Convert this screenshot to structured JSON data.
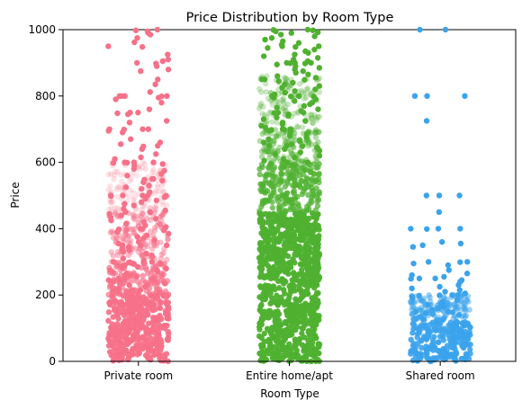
{
  "chart_data": {
    "type": "scatter",
    "subtype": "strip",
    "title": "Price Distribution by Room Type",
    "xlabel": "Room Type",
    "ylabel": "Price",
    "ylim": [
      0,
      1000
    ],
    "yticks": [
      0,
      200,
      400,
      600,
      800,
      1000
    ],
    "grid": false,
    "legend": "none",
    "categories": [
      "Private room",
      "Entire home/apt",
      "Shared room"
    ],
    "series": [
      {
        "category": "Private room",
        "color": "#f77189",
        "jitter_width": 0.4,
        "dense_bands": [
          {
            "from": 0,
            "to": 200,
            "opacity": 0.95
          },
          {
            "from": 200,
            "to": 300,
            "opacity": 0.7
          },
          {
            "from": 300,
            "to": 450,
            "opacity": 0.45
          },
          {
            "from": 450,
            "to": 600,
            "opacity": 0.2
          }
        ],
        "values": [
          1000,
          998,
          995,
          990,
          985,
          975,
          962,
          950,
          948,
          925,
          910,
          905,
          900,
          898,
          890,
          880,
          875,
          850,
          835,
          812,
          800,
          800,
          800,
          800,
          799,
          795,
          790,
          780,
          760,
          750,
          750,
          748,
          745,
          725,
          720,
          700,
          700,
          700,
          699,
          695,
          690,
          670,
          660,
          655,
          650,
          648,
          640,
          625,
          615,
          610,
          600,
          600,
          600,
          599,
          598,
          595,
          590,
          580,
          575,
          565,
          560,
          550,
          550,
          548,
          545,
          540,
          530,
          525,
          520,
          510,
          500,
          500,
          500,
          500,
          499,
          498,
          495,
          490,
          485,
          480,
          475,
          470,
          460,
          455,
          450,
          450,
          449,
          445,
          440,
          435,
          430,
          425,
          420,
          415,
          410,
          405,
          400,
          400,
          399,
          398,
          395,
          390,
          385,
          380,
          375,
          370,
          365,
          360,
          355,
          350,
          350,
          349,
          345,
          340,
          335,
          330,
          325,
          320,
          315,
          310,
          305,
          300,
          300,
          299,
          298,
          295,
          290,
          285,
          280,
          275,
          270,
          265,
          260,
          255,
          250,
          250,
          248,
          245,
          240,
          235,
          230,
          225,
          220,
          215,
          210
        ]
      },
      {
        "category": "Entire home/apt",
        "color": "#50b131",
        "jitter_width": 0.4,
        "dense_bands": [
          {
            "from": 0,
            "to": 450,
            "opacity": 0.97
          },
          {
            "from": 450,
            "to": 600,
            "opacity": 0.75
          },
          {
            "from": 600,
            "to": 700,
            "opacity": 0.45
          },
          {
            "from": 700,
            "to": 860,
            "opacity": 0.3
          }
        ],
        "values": [
          1000,
          999,
          998,
          995,
          992,
          990,
          985,
          980,
          975,
          970,
          965,
          960,
          955,
          950,
          950,
          948,
          945,
          940,
          935,
          930,
          925,
          920,
          915,
          910,
          905,
          900,
          900,
          900,
          899,
          898,
          895,
          890,
          885,
          880,
          875,
          870,
          865,
          860,
          855,
          850,
          850,
          849,
          845,
          840,
          835,
          830,
          825,
          820,
          815,
          810,
          805,
          800,
          800,
          800,
          799,
          798,
          795,
          790,
          785,
          780,
          775,
          770,
          765,
          760,
          755,
          750,
          750,
          749,
          745,
          740,
          735,
          730,
          725,
          720,
          715,
          710,
          705,
          700,
          700,
          699,
          698,
          695,
          690,
          685,
          680,
          675,
          670,
          665,
          660,
          655,
          650,
          650,
          649,
          645,
          640,
          635,
          630,
          625,
          620,
          615,
          610,
          605,
          600,
          600
        ]
      },
      {
        "category": "Shared room",
        "color": "#3ba3ec",
        "jitter_width": 0.4,
        "dense_bands": [
          {
            "from": 0,
            "to": 130,
            "opacity": 0.9
          },
          {
            "from": 130,
            "to": 200,
            "opacity": 0.5
          }
        ],
        "values": [
          1000,
          1000,
          800,
          800,
          800,
          725,
          500,
          500,
          500,
          450,
          400,
          400,
          400,
          399,
          360,
          355,
          350,
          345,
          300,
          300,
          299,
          295,
          290,
          275,
          265,
          260,
          255,
          250,
          250,
          249,
          245,
          240,
          230,
          225,
          220,
          215,
          210,
          205,
          200,
          200,
          199,
          198,
          195,
          190,
          185,
          180,
          175,
          170,
          165,
          160,
          155,
          150,
          150,
          148,
          145,
          140,
          135
        ]
      }
    ]
  }
}
